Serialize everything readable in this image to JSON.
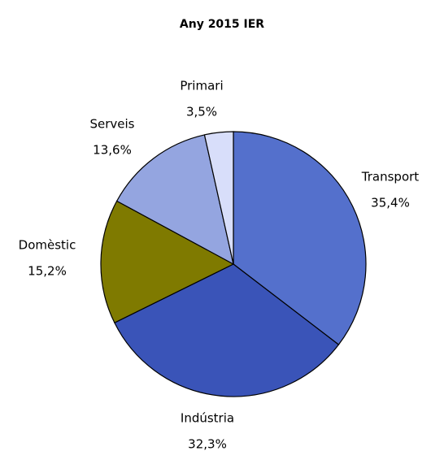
{
  "chart_data": {
    "type": "pie",
    "title": "Any 2015 IER",
    "categories": [
      "Transport",
      "Indústria",
      "Domèstic",
      "Serveis",
      "Primari"
    ],
    "values": [
      35.4,
      32.3,
      15.2,
      13.6,
      3.5
    ],
    "value_labels": [
      "35,4%",
      "32,3%",
      "15,2%",
      "13,6%",
      "3,5%"
    ],
    "colors": [
      "#5470cc",
      "#3a54b8",
      "#7f7a00",
      "#94a5e0",
      "#d8defa"
    ]
  }
}
